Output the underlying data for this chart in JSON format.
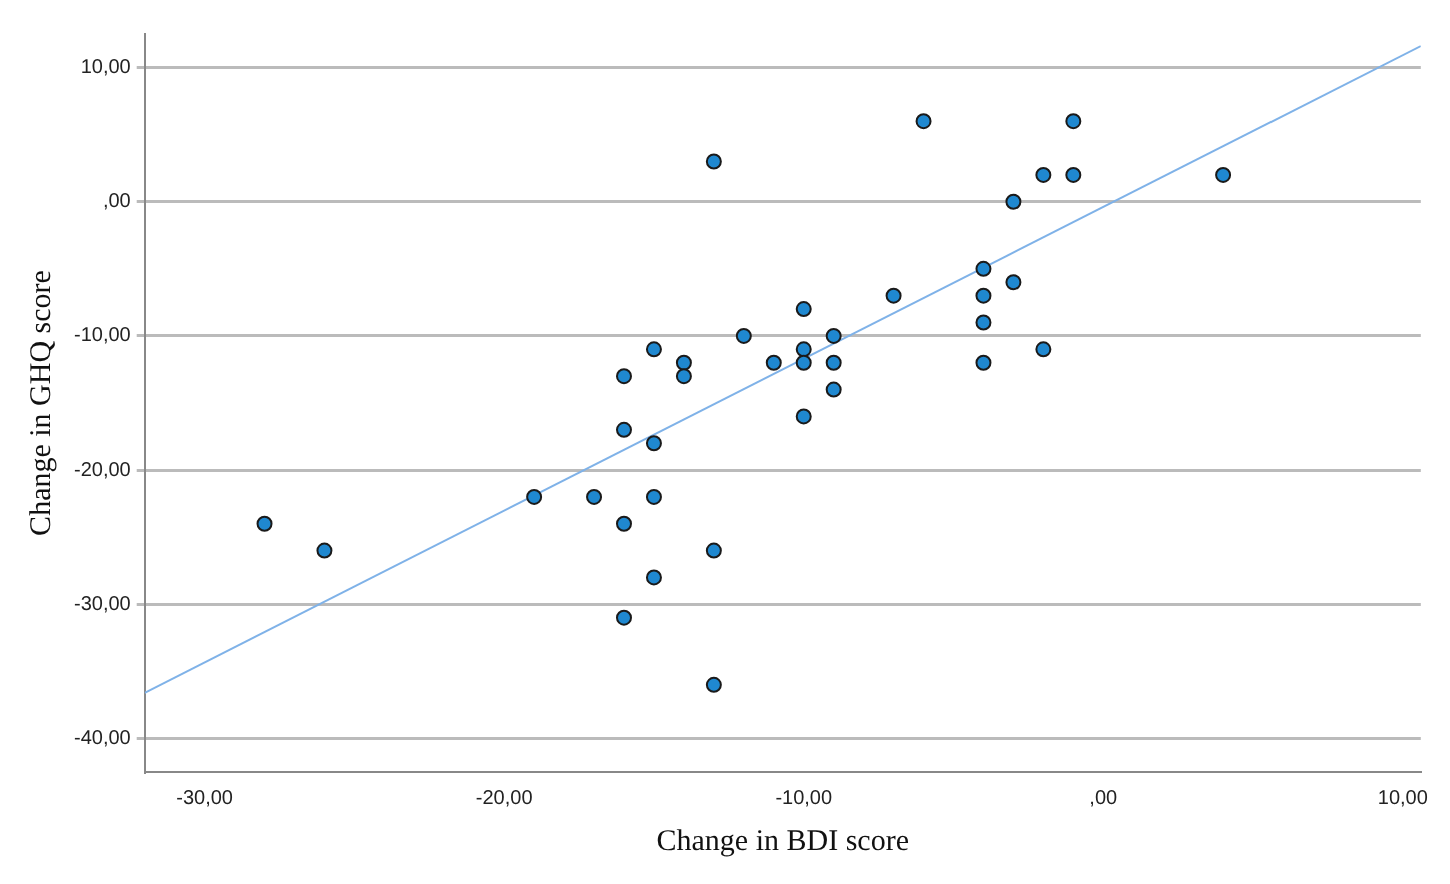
{
  "chart_data": {
    "type": "scatter",
    "xlabel": "Change in BDI score",
    "ylabel": "Change in GHQ score",
    "xlim": [
      -32,
      10.6
    ],
    "ylim": [
      -42.5,
      12.5
    ],
    "xticks": [
      {
        "value": -30,
        "label": "-30,00"
      },
      {
        "value": -20,
        "label": "-20,00"
      },
      {
        "value": -10,
        "label": "-10,00"
      },
      {
        "value": 0,
        "label": ",00"
      },
      {
        "value": 10,
        "label": "10,00"
      }
    ],
    "yticks": [
      {
        "value": -40,
        "label": "-40,00"
      },
      {
        "value": -30,
        "label": "-30,00"
      },
      {
        "value": -20,
        "label": "-20,00"
      },
      {
        "value": -10,
        "label": "-10,00"
      },
      {
        "value": 0,
        "label": ",00"
      },
      {
        "value": 10,
        "label": "10,00"
      }
    ],
    "grid": "y",
    "legend": false,
    "marker": "circle",
    "series": [
      {
        "type": "scatter",
        "color": "#1f88d0",
        "x": [
          -28,
          -26,
          -19,
          -17,
          -16,
          -16,
          -16,
          -16,
          -15,
          -15,
          -15,
          -15,
          -14,
          -14,
          -13,
          -13,
          -13,
          -12,
          -11,
          -10,
          -10,
          -10,
          -10,
          -9,
          -9,
          -9,
          -7,
          -6,
          -4,
          -4,
          -4,
          -4,
          -3,
          -3,
          -2,
          -2,
          -1,
          -1,
          4
        ],
        "values": [
          -24,
          -26,
          -22,
          -22,
          -24,
          -31,
          -17,
          -13,
          -11,
          -18,
          -22,
          -28,
          -12,
          -13,
          3,
          -26,
          -36,
          -10,
          -12,
          -8,
          -11,
          -12,
          -16,
          -10,
          -12,
          -14,
          -7,
          6,
          -5,
          -7,
          -9,
          -12,
          0,
          -6,
          2,
          -11,
          6,
          2,
          2
        ]
      },
      {
        "type": "line",
        "color": "#7fb2e8",
        "marker": "none",
        "line_style": "solid",
        "x": [
          -32,
          10.6
        ],
        "values": [
          -36.6,
          11.6
        ]
      }
    ]
  }
}
